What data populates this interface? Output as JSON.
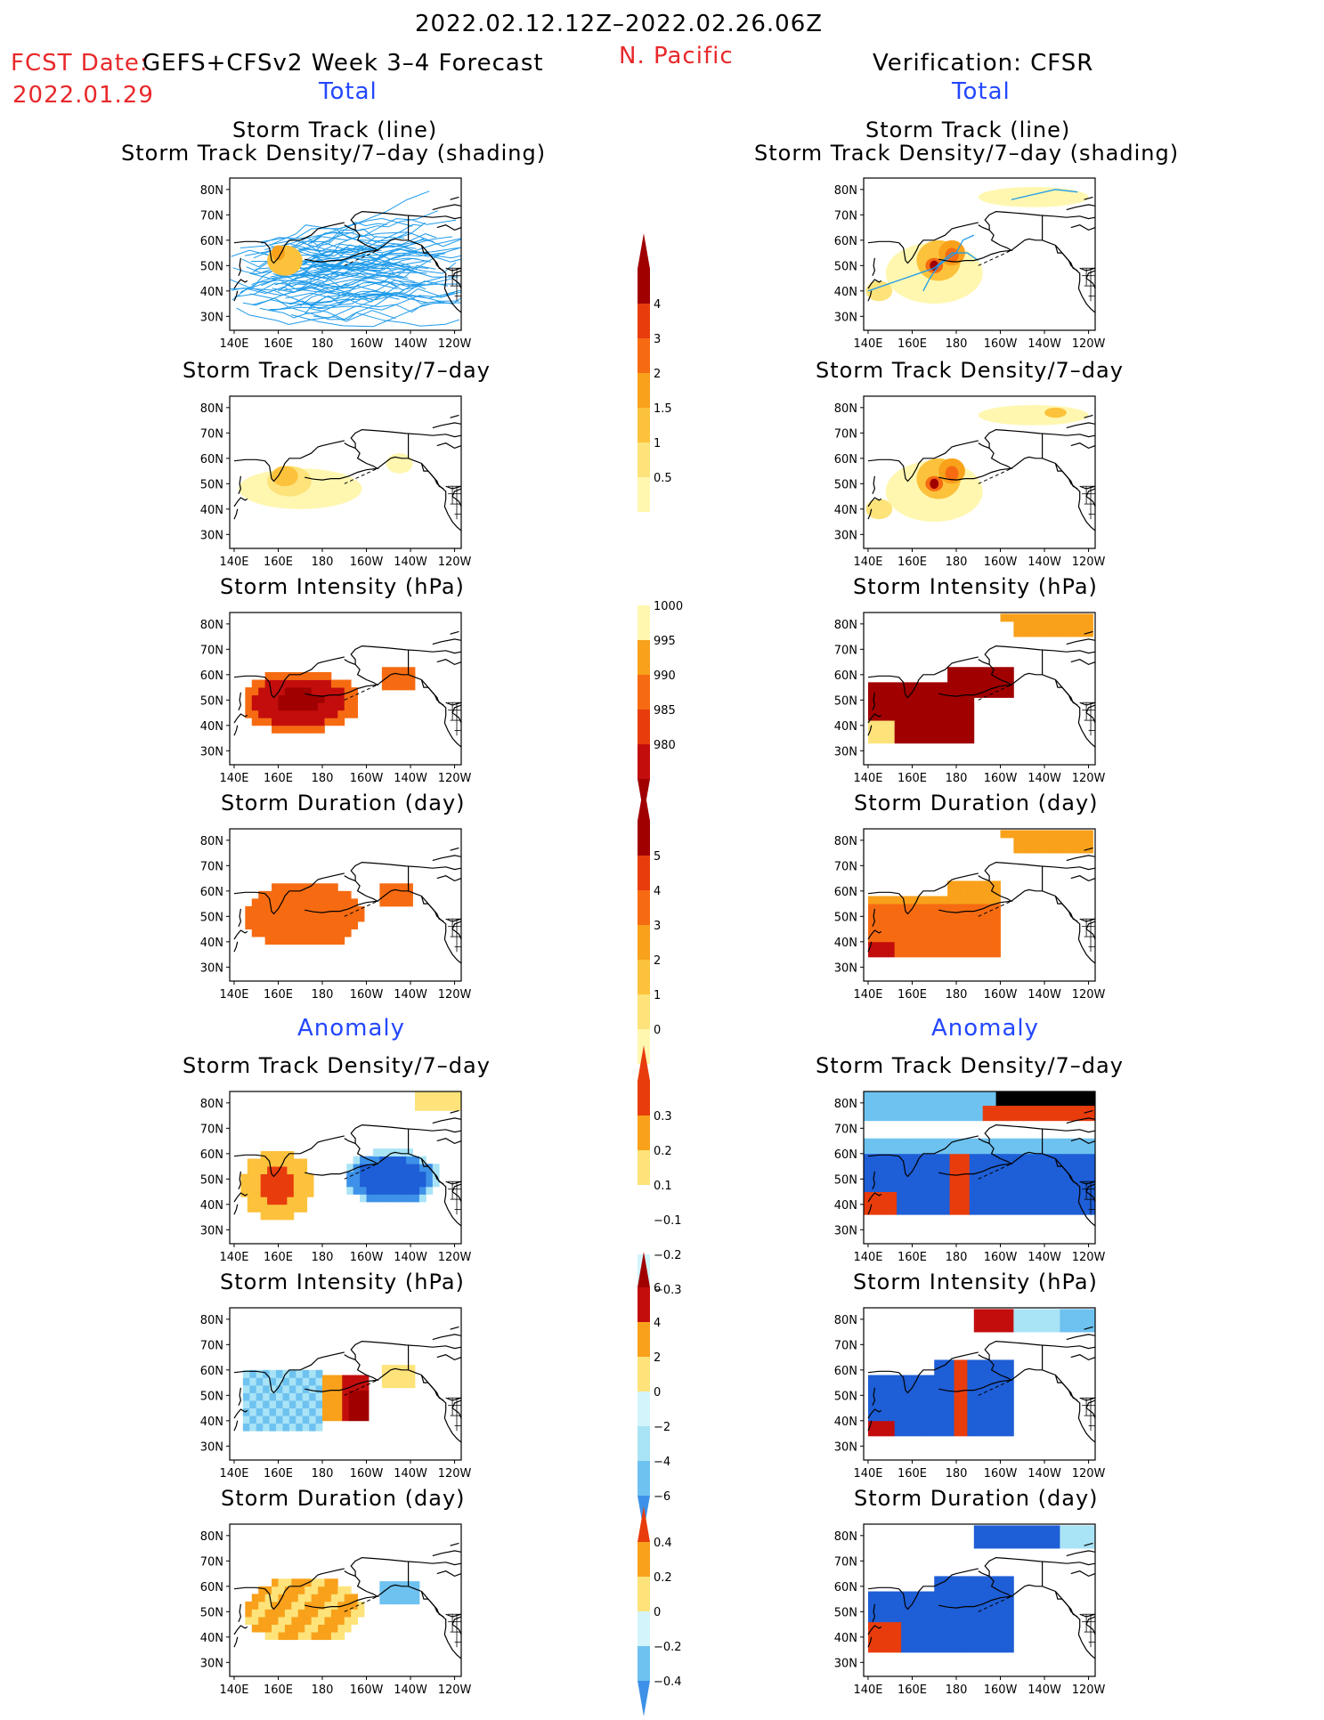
{
  "header": {
    "date_range": "2022.02.12.12Z–2022.02.26.06Z",
    "fcst_label": "FCST Date:",
    "fcst_date": "2022.01.29",
    "model": "GEFS+CFSv2 Week 3–4 Forecast",
    "region": "N. Pacific",
    "verification": "Verification: CFSR",
    "left_total": "Total",
    "right_total": "Total",
    "left_anomaly": "Anomaly",
    "right_anomaly": "Anomaly"
  },
  "panel_titles": {
    "track_line": "Storm Track (line)",
    "track_shading": "Storm Track Density/7–day (shading)",
    "density": "Storm Track Density/7–day",
    "intensity": "Storm Intensity (hPa)",
    "duration": "Storm Duration (day)"
  },
  "axes": {
    "lat_ticks": [
      "80N",
      "70N",
      "60N",
      "50N",
      "40N",
      "30N"
    ],
    "lon_ticks": [
      "140E",
      "160E",
      "180",
      "160W",
      "140W",
      "120W"
    ]
  },
  "colors": {
    "cfsv_track_line": "#1f9bea",
    "pos_scale": [
      "#fff7b0",
      "#fde37a",
      "#fcc23c",
      "#f9a11b",
      "#f66b12",
      "#e83c0d",
      "#c30d0d",
      "#a00000"
    ],
    "neg_scale": [
      "#d4f4fb",
      "#a9e3f6",
      "#6ec2f0",
      "#3d91e8",
      "#1e5ed6"
    ]
  },
  "colorbars": {
    "density_total": [
      "4",
      "3",
      "2",
      "1.5",
      "1",
      "0.5"
    ],
    "intensity_total": [
      "1000",
      "995",
      "990",
      "985",
      "980"
    ],
    "duration_total": [
      "5",
      "4",
      "3",
      "2",
      "1",
      "0"
    ],
    "density_anom": [
      "0.3",
      "0.2",
      "0.1",
      "−0.1",
      "−0.2",
      "−0.3"
    ],
    "intensity_anom": [
      "6",
      "4",
      "2",
      "0",
      "−2",
      "−4",
      "−6"
    ],
    "duration_anom": [
      "0.4",
      "0.2",
      "0",
      "−0.2",
      "−0.4"
    ]
  },
  "chart_data": [
    {
      "type": "heatmap",
      "panel": "fcst_track_total",
      "field": "Storm track density with track lines",
      "lon_range": [
        "140E",
        "120W"
      ],
      "lat_range": [
        "30N",
        "80N"
      ]
    },
    {
      "type": "heatmap",
      "panel": "verif_track_total",
      "field": "Storm track density with track lines",
      "lon_range": [
        "140E",
        "120W"
      ],
      "lat_range": [
        "30N",
        "80N"
      ]
    },
    {
      "type": "heatmap",
      "panel": "fcst_density_total",
      "field": "Storm Track Density/7-day",
      "scale": [
        0.5,
        1,
        1.5,
        2,
        3,
        4
      ]
    },
    {
      "type": "heatmap",
      "panel": "verif_density_total",
      "field": "Storm Track Density/7-day",
      "scale": [
        0.5,
        1,
        1.5,
        2,
        3,
        4
      ]
    },
    {
      "type": "heatmap",
      "panel": "fcst_intensity_total",
      "field": "Storm Intensity (hPa)",
      "scale": [
        980,
        985,
        990,
        995,
        1000
      ]
    },
    {
      "type": "heatmap",
      "panel": "verif_intensity_total",
      "field": "Storm Intensity (hPa)",
      "scale": [
        980,
        985,
        990,
        995,
        1000
      ]
    },
    {
      "type": "heatmap",
      "panel": "fcst_duration_total",
      "field": "Storm Duration (day)",
      "scale": [
        0,
        1,
        2,
        3,
        4,
        5
      ]
    },
    {
      "type": "heatmap",
      "panel": "verif_duration_total",
      "field": "Storm Duration (day)",
      "scale": [
        0,
        1,
        2,
        3,
        4,
        5
      ]
    },
    {
      "type": "heatmap",
      "panel": "fcst_density_anom",
      "field": "Storm Track Density/7-day anomaly",
      "scale": [
        -0.3,
        -0.2,
        -0.1,
        0.1,
        0.2,
        0.3
      ]
    },
    {
      "type": "heatmap",
      "panel": "verif_density_anom",
      "field": "Storm Track Density/7-day anomaly",
      "scale": [
        -0.3,
        -0.2,
        -0.1,
        0.1,
        0.2,
        0.3
      ]
    },
    {
      "type": "heatmap",
      "panel": "fcst_intensity_anom",
      "field": "Storm Intensity anomaly (hPa)",
      "scale": [
        -6,
        -4,
        -2,
        0,
        2,
        4,
        6
      ]
    },
    {
      "type": "heatmap",
      "panel": "verif_intensity_anom",
      "field": "Storm Intensity anomaly (hPa)",
      "scale": [
        -6,
        -4,
        -2,
        0,
        2,
        4,
        6
      ]
    },
    {
      "type": "heatmap",
      "panel": "fcst_duration_anom",
      "field": "Storm Duration anomaly (day)",
      "scale": [
        -0.4,
        -0.2,
        0,
        0.2,
        0.4
      ]
    },
    {
      "type": "heatmap",
      "panel": "verif_duration_anom",
      "field": "Storm Duration anomaly (day)",
      "scale": [
        -0.4,
        -0.2,
        0,
        0.2,
        0.4
      ]
    }
  ]
}
